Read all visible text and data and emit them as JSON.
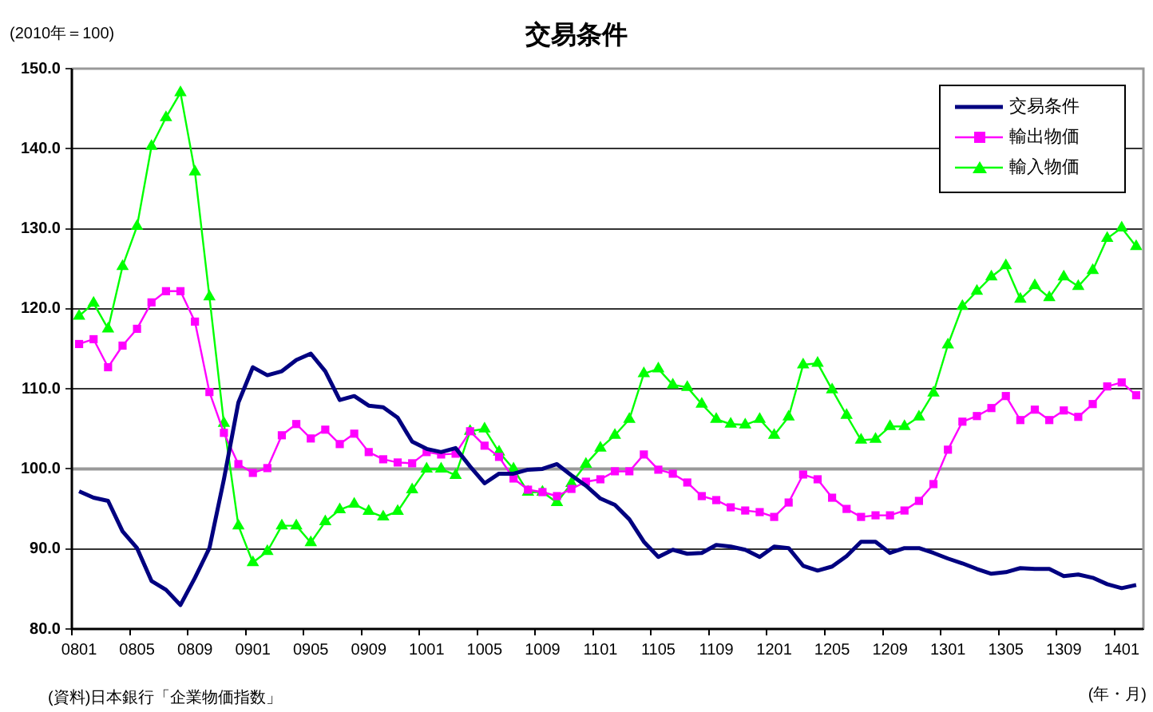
{
  "chart_data": {
    "type": "line",
    "title": "交易条件",
    "ylabel": "(2010年＝100)",
    "xlabel": "(年・月)",
    "annotations": [
      "(資料)日本銀行「企業物価指数」"
    ],
    "categories": [
      "0801",
      null,
      null,
      null,
      "0805",
      null,
      null,
      null,
      "0809",
      null,
      null,
      null,
      "0901",
      null,
      null,
      null,
      "0905",
      null,
      null,
      null,
      "0909",
      null,
      null,
      null,
      "1001",
      null,
      null,
      null,
      "1005",
      null,
      null,
      null,
      "1009",
      null,
      null,
      null,
      "1101",
      null,
      null,
      null,
      "1105",
      null,
      null,
      null,
      "1109",
      null,
      null,
      null,
      "1201",
      null,
      null,
      null,
      "1205",
      null,
      null,
      null,
      "1209",
      null,
      null,
      null,
      "1301",
      null,
      null,
      null,
      "1305",
      null,
      null,
      null,
      "1309",
      null,
      null,
      null,
      "1401",
      null
    ],
    "series": [
      {
        "name": "交易条件",
        "color": "#000080",
        "marker": "none",
        "values": [
          97.2,
          96.4,
          96.0,
          92.2,
          90.1,
          86.0,
          84.9,
          83.0,
          86.4,
          90.1,
          98.7,
          108.3,
          112.7,
          111.7,
          112.2,
          113.6,
          114.4,
          112.2,
          108.6,
          109.1,
          107.9,
          107.7,
          106.4,
          103.4,
          102.5,
          102.1,
          102.6,
          100.3,
          98.2,
          99.4,
          99.4,
          99.9,
          100.0,
          100.6,
          99.2,
          97.9,
          96.3,
          95.5,
          93.7,
          90.9,
          89.0,
          89.9,
          89.4,
          89.5,
          90.5,
          90.3,
          89.9,
          89.0,
          90.3,
          90.1,
          87.9,
          87.3,
          87.8,
          89.1,
          90.9,
          90.9,
          89.5,
          90.1,
          90.1,
          89.5,
          88.8,
          88.2,
          87.5,
          86.9,
          87.1,
          87.6,
          87.5,
          87.5,
          86.6,
          86.8,
          86.4,
          85.6,
          85.1,
          85.5
        ]
      },
      {
        "name": "輸出物価",
        "color": "#ff00ff",
        "marker": "square",
        "values": [
          115.6,
          116.2,
          112.7,
          115.4,
          117.5,
          120.8,
          122.2,
          122.2,
          118.4,
          109.6,
          104.5,
          100.6,
          99.5,
          100.1,
          104.2,
          105.6,
          103.8,
          104.9,
          103.1,
          104.4,
          102.1,
          101.2,
          100.8,
          100.7,
          102.1,
          101.8,
          101.9,
          104.7,
          102.9,
          101.5,
          98.8,
          97.4,
          97.1,
          96.6,
          97.5,
          98.4,
          98.7,
          99.7,
          99.7,
          101.8,
          99.9,
          99.4,
          98.3,
          96.6,
          96.1,
          95.2,
          94.8,
          94.6,
          94.0,
          95.8,
          99.3,
          98.7,
          96.4,
          95.0,
          94.0,
          94.2,
          94.2,
          94.8,
          96.0,
          98.1,
          102.4,
          105.9,
          106.6,
          107.6,
          109.1,
          106.1,
          107.4,
          106.1,
          107.3,
          106.5,
          108.1,
          110.3,
          110.8,
          109.2
        ]
      },
      {
        "name": "輸入物価",
        "color": "#00ff00",
        "marker": "triangle",
        "values": [
          119.1,
          120.7,
          117.5,
          125.3,
          130.3,
          140.3,
          143.9,
          147.0,
          137.1,
          121.5,
          105.7,
          92.9,
          88.3,
          89.7,
          92.9,
          92.9,
          90.8,
          93.4,
          94.9,
          95.6,
          94.7,
          94.0,
          94.7,
          97.4,
          100.0,
          100.0,
          99.2,
          104.7,
          105.0,
          102.1,
          100.0,
          97.1,
          97.1,
          95.8,
          98.2,
          100.6,
          102.6,
          104.2,
          106.2,
          111.9,
          112.5,
          110.5,
          110.2,
          108.1,
          106.2,
          105.6,
          105.5,
          106.2,
          104.2,
          106.5,
          113.0,
          113.2,
          109.9,
          106.7,
          103.6,
          103.7,
          105.3,
          105.3,
          106.5,
          109.5,
          115.5,
          120.3,
          122.2,
          124.0,
          125.4,
          121.2,
          122.9,
          121.4,
          124.0,
          122.8,
          124.8,
          128.8,
          130.1,
          127.8
        ]
      }
    ],
    "ylim": [
      80,
      150
    ],
    "yticks": [
      {
        "value": 80,
        "label": "80.0"
      },
      {
        "value": 90,
        "label": "90.0"
      },
      {
        "value": 100,
        "label": "100.0"
      },
      {
        "value": 110,
        "label": "110.0"
      },
      {
        "value": 120,
        "label": "120.0"
      },
      {
        "value": 130,
        "label": "130.0"
      },
      {
        "value": 140,
        "label": "140.0"
      },
      {
        "value": 150,
        "label": "150.0"
      }
    ],
    "ref_lines": [
      {
        "axis": "y",
        "value": 100,
        "color": "#999999"
      }
    ],
    "grid": "y",
    "legend": "top right"
  }
}
